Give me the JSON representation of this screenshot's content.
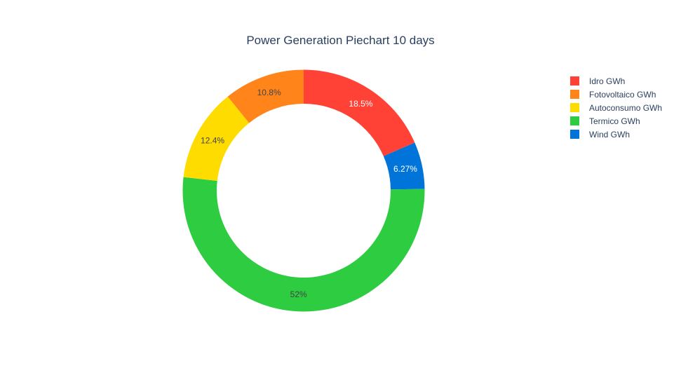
{
  "chart_data": {
    "type": "pie",
    "hole": true,
    "title": "Power Generation Piechart 10 days",
    "labels": [
      "Idro GWh",
      "Fotovoltaico GWh",
      "Autoconsumo GWh",
      "Termico GWh",
      "Wind GWh"
    ],
    "values": [
      18.5,
      10.8,
      12.4,
      52.0,
      6.27
    ],
    "percent_labels": [
      "18.5%",
      "10.8%",
      "12.4%",
      "52%",
      "6.27%"
    ],
    "colors": [
      "#ff4136",
      "#ff851b",
      "#ffdc00",
      "#2ecc40",
      "#0074d9"
    ],
    "label_colors": [
      "#ffffff",
      "#444444",
      "#444444",
      "#444444",
      "#ffffff"
    ],
    "direction": "clockwise",
    "start_angle_deg": 0,
    "legend_position": "top-right"
  }
}
